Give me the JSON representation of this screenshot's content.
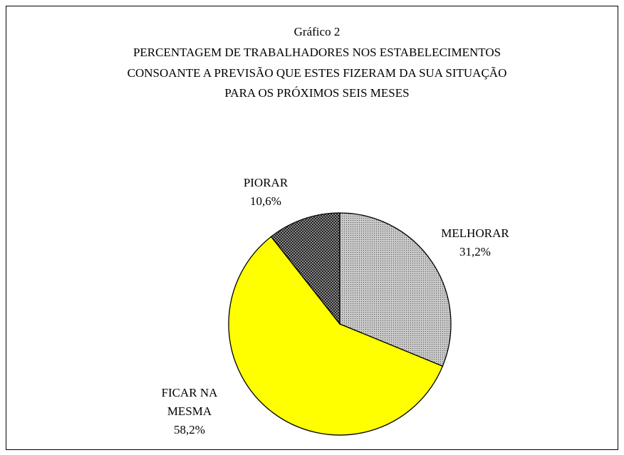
{
  "chart_data": {
    "type": "pie",
    "title": [
      "Gráfico 2",
      "PERCENTAGEM DE TRABALHADORES NOS ESTABELECIMENTOS",
      "CONSOANTE A PREVISÃO QUE ESTES FIZERAM DA SUA SITUAÇÃO",
      "PARA OS PRÓXIMOS SEIS MESES"
    ],
    "categories": [
      "MELHORAR",
      "FICAR NA MESMA",
      "PIORAR"
    ],
    "values": [
      31.2,
      58.2,
      10.6
    ],
    "value_labels": [
      "31,2%",
      "58,2%",
      "10,6%"
    ],
    "colors": [
      "#c8c8c8",
      "#ffff00",
      "#8a8a8a"
    ]
  }
}
